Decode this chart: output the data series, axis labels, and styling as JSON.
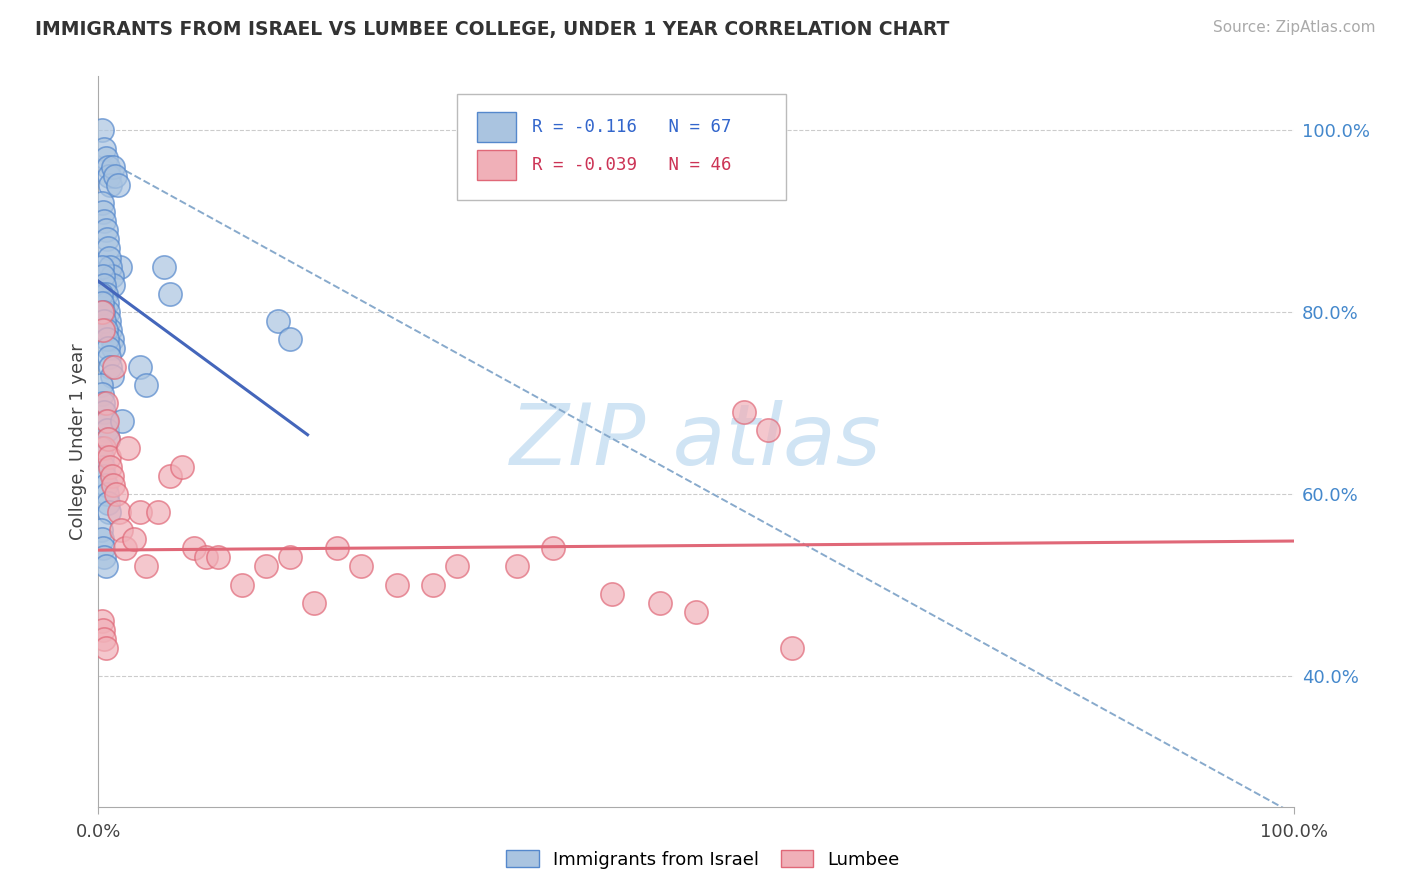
{
  "title": "IMMIGRANTS FROM ISRAEL VS LUMBEE COLLEGE, UNDER 1 YEAR CORRELATION CHART",
  "source": "Source: ZipAtlas.com",
  "ylabel": "College, Under 1 year",
  "legend_label1": "Immigrants from Israel",
  "legend_label2": "Lumbee",
  "r1": -0.116,
  "n1": 67,
  "r2": -0.039,
  "n2": 46,
  "color_blue_fill": "#aac4e0",
  "color_blue_edge": "#5588cc",
  "color_pink_fill": "#f0b0b8",
  "color_pink_edge": "#e06878",
  "line_blue_color": "#4466bb",
  "line_pink_color": "#e06878",
  "line_dashed_color": "#88aacc",
  "grid_color": "#cccccc",
  "y_ticks": [
    0.4,
    0.6,
    0.8,
    1.0
  ],
  "ylim_low": 0.255,
  "ylim_high": 1.06,
  "xlim_low": 0.0,
  "xlim_high": 1.0,
  "blue_line_x0": 0.0,
  "blue_line_y0": 0.834,
  "blue_line_x1": 0.175,
  "blue_line_y1": 0.665,
  "pink_line_x0": 0.0,
  "pink_line_y0": 0.538,
  "pink_line_x1": 1.0,
  "pink_line_y1": 0.548,
  "dash_line_x0": 0.0,
  "dash_line_y0": 0.972,
  "dash_line_x1": 1.0,
  "dash_line_y1": 0.248,
  "israel_x": [
    0.003,
    0.005,
    0.006,
    0.008,
    0.009,
    0.01,
    0.012,
    0.014,
    0.016,
    0.018,
    0.003,
    0.004,
    0.005,
    0.006,
    0.007,
    0.008,
    0.009,
    0.01,
    0.011,
    0.012,
    0.003,
    0.004,
    0.005,
    0.006,
    0.007,
    0.008,
    0.009,
    0.01,
    0.011,
    0.012,
    0.002,
    0.003,
    0.004,
    0.005,
    0.006,
    0.007,
    0.008,
    0.009,
    0.01,
    0.011,
    0.002,
    0.003,
    0.004,
    0.005,
    0.006,
    0.007,
    0.008,
    0.002,
    0.003,
    0.004,
    0.005,
    0.006,
    0.007,
    0.008,
    0.009,
    0.002,
    0.003,
    0.004,
    0.005,
    0.006,
    0.15,
    0.16,
    0.055,
    0.06,
    0.035,
    0.04,
    0.02
  ],
  "israel_y": [
    1.0,
    0.98,
    0.97,
    0.96,
    0.95,
    0.94,
    0.96,
    0.95,
    0.94,
    0.85,
    0.92,
    0.91,
    0.9,
    0.89,
    0.88,
    0.87,
    0.86,
    0.85,
    0.84,
    0.83,
    0.85,
    0.84,
    0.83,
    0.82,
    0.81,
    0.8,
    0.79,
    0.78,
    0.77,
    0.76,
    0.82,
    0.81,
    0.8,
    0.79,
    0.78,
    0.77,
    0.76,
    0.75,
    0.74,
    0.73,
    0.72,
    0.71,
    0.7,
    0.69,
    0.68,
    0.67,
    0.66,
    0.65,
    0.64,
    0.63,
    0.62,
    0.61,
    0.6,
    0.59,
    0.58,
    0.56,
    0.55,
    0.54,
    0.53,
    0.52,
    0.79,
    0.77,
    0.85,
    0.82,
    0.74,
    0.72,
    0.68
  ],
  "lumbee_x": [
    0.003,
    0.004,
    0.005,
    0.006,
    0.007,
    0.008,
    0.009,
    0.01,
    0.011,
    0.012,
    0.013,
    0.015,
    0.017,
    0.019,
    0.022,
    0.025,
    0.03,
    0.035,
    0.04,
    0.05,
    0.06,
    0.07,
    0.08,
    0.09,
    0.1,
    0.12,
    0.14,
    0.16,
    0.18,
    0.2,
    0.22,
    0.25,
    0.28,
    0.3,
    0.35,
    0.38,
    0.43,
    0.47,
    0.5,
    0.54,
    0.56,
    0.58,
    0.003,
    0.004,
    0.005,
    0.006
  ],
  "lumbee_y": [
    0.8,
    0.78,
    0.65,
    0.7,
    0.68,
    0.66,
    0.64,
    0.63,
    0.62,
    0.61,
    0.74,
    0.6,
    0.58,
    0.56,
    0.54,
    0.65,
    0.55,
    0.58,
    0.52,
    0.58,
    0.62,
    0.63,
    0.54,
    0.53,
    0.53,
    0.5,
    0.52,
    0.53,
    0.48,
    0.54,
    0.52,
    0.5,
    0.5,
    0.52,
    0.52,
    0.54,
    0.49,
    0.48,
    0.47,
    0.69,
    0.67,
    0.43,
    0.46,
    0.45,
    0.44,
    0.43
  ],
  "watermark_text": "ZIP atlas",
  "watermark_color": "#d0e4f4",
  "title_fontsize": 13.5,
  "source_fontsize": 11,
  "tick_fontsize": 13,
  "ylabel_fontsize": 13,
  "legend_fontsize": 12.5
}
